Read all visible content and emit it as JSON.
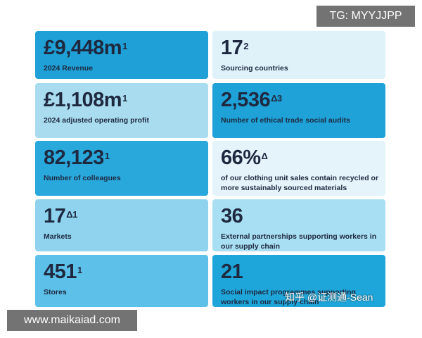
{
  "watermarks": {
    "top": "TG: MYYJJPP",
    "bottom_left": "www.maikaiad.com",
    "bottom_right": "知乎 @证测通-Sean"
  },
  "tiles": [
    {
      "value": "£9,448m",
      "sup": "1",
      "label": "2024 Revenue"
    },
    {
      "value": "17",
      "sup": "2",
      "label": "Sourcing countries"
    },
    {
      "value": "£1,108m",
      "sup": "1",
      "label": "2024 adjusted operating profit"
    },
    {
      "value": "2,536",
      "sup": "Δ3",
      "label": "Number of ethical trade social audits"
    },
    {
      "value": "82,123",
      "sup": "1",
      "label": "Number of colleagues"
    },
    {
      "value": "66%",
      "sup": "Δ",
      "label": "of our clothing unit sales contain recycled or more sustainably sourced materials"
    },
    {
      "value": "17",
      "sup": "Δ1",
      "label": "Markets"
    },
    {
      "value": "36",
      "sup": "",
      "label": "External partnerships supporting workers in our supply chain"
    },
    {
      "value": "451",
      "sup": "1",
      "label": "Stores"
    },
    {
      "value": "21",
      "sup": "",
      "label": "Social impact programmes supporting workers in our supply chain"
    }
  ]
}
